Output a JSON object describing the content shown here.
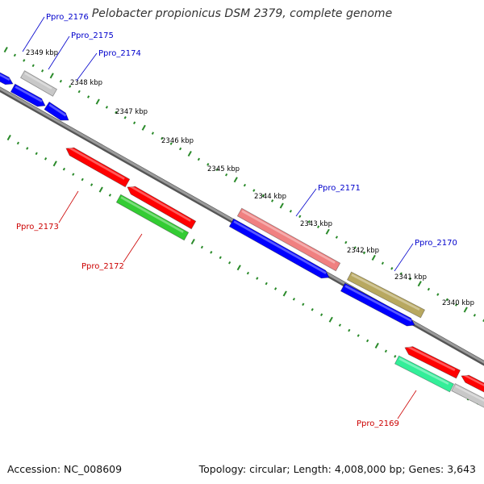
{
  "title": "Pelobacter propionicus DSM 2379, complete genome",
  "footer": {
    "accession": "Accession: NC_008609",
    "summary": "Topology: circular; Length: 4,008,000 bp; Genes: 3,643"
  },
  "colors": {
    "backbone": "#8a8a8a",
    "tick": "#2a8a2a",
    "label_top": "#0000cc",
    "label_bottom": "#cc0000",
    "gene_blue": "#0000ff",
    "gene_grey": "#c8c8c8",
    "gene_red": "#ff0000",
    "gene_green": "#33cc33",
    "gene_pink": "#f08080",
    "gene_olive": "#b8a860",
    "gene_teal": "#33ee99"
  },
  "scale_labels": [
    "2349 kbp",
    "2348 kbp",
    "2347 kbp",
    "2346 kbp",
    "2345 kbp",
    "2344 kbp",
    "2343 kbp",
    "2342 kbp",
    "2341 kbp",
    "2340 kbp"
  ],
  "gene_labels": {
    "top": [
      "Ppro_2176",
      "Ppro_2175",
      "Ppro_2174",
      "Ppro_2171",
      "Ppro_2170"
    ],
    "bottom": [
      "Ppro_2173",
      "Ppro_2172",
      "Ppro_2169"
    ]
  }
}
